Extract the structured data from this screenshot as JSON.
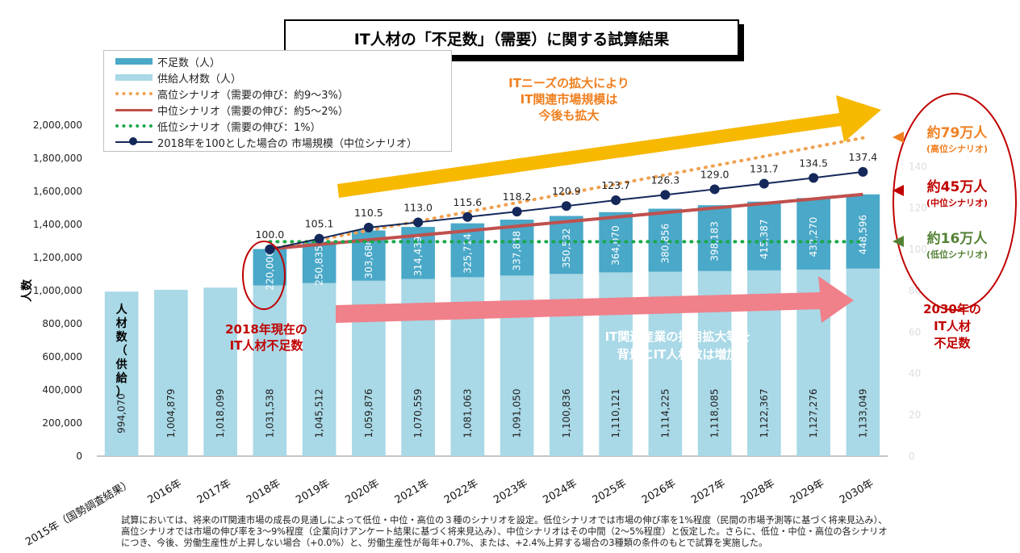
{
  "title": "IT人材の「不足数」（需要）に関する試算結果",
  "legend": [
    {
      "label": "不足数（人）",
      "kind": "bar",
      "color": "#4aa8c8"
    },
    {
      "label": "供給人材数（人）",
      "kind": "bar",
      "color": "#a9d8e6"
    },
    {
      "label": "高位シナリオ（需要の伸び：約9〜3%）",
      "kind": "dots",
      "color": "#f0a050"
    },
    {
      "label": "中位シナリオ（需要の伸び：約5〜2%）",
      "kind": "line",
      "color": "#c0504d"
    },
    {
      "label": "低位シナリオ（需要の伸び：1%）",
      "kind": "dots",
      "color": "#1aa84a"
    },
    {
      "label": "2018年を100とした場合の 市場規模（中位シナリオ）",
      "kind": "marker",
      "color": "#14285a"
    }
  ],
  "chart_data": {
    "type": "bar",
    "stacked": true,
    "ylabel": "人数",
    "ylim": [
      0,
      2000000
    ],
    "yticks": [
      "0",
      "200,000",
      "400,000",
      "600,000",
      "800,000",
      "1,000,000",
      "1,200,000",
      "1,400,000",
      "1,600,000",
      "1,800,000",
      "2,000,000"
    ],
    "categories": [
      "2015年（国勢調査結果）",
      "2016年",
      "2017年",
      "2018年",
      "2019年",
      "2020年",
      "2021年",
      "2022年",
      "2023年",
      "2024年",
      "2025年",
      "2026年",
      "2027年",
      "2028年",
      "2029年",
      "2030年"
    ],
    "supply": [
      994070,
      1004879,
      1018099,
      1031538,
      1045512,
      1059876,
      1070559,
      1081063,
      1091050,
      1100836,
      1110121,
      1114225,
      1118085,
      1122367,
      1127276,
      1133049
    ],
    "supply_labels": [
      "994,070",
      "1,004,879",
      "1,018,099",
      "1,031,538",
      "1,045,512",
      "1,059,876",
      "1,070,559",
      "1,081,063",
      "1,091,050",
      "1,100,836",
      "1,110,121",
      "1,114,225",
      "1,118,085",
      "1,122,367",
      "1,127,276",
      "1,133,049"
    ],
    "shortage": [
      null,
      null,
      null,
      220000,
      250835,
      303680,
      314439,
      325714,
      337848,
      350532,
      364070,
      380856,
      398183,
      415387,
      432270,
      448596
    ],
    "shortage_labels": [
      "",
      "",
      "",
      "220,000",
      "250,835",
      "303,680",
      "314,439",
      "325,714",
      "337,848",
      "350,532",
      "364,070",
      "380,856",
      "398,183",
      "415,387",
      "432,270",
      "448,596"
    ],
    "market_index": [
      null,
      null,
      null,
      100.0,
      105.1,
      110.5,
      113.0,
      115.6,
      118.2,
      120.9,
      123.7,
      126.3,
      129.0,
      131.7,
      134.5,
      137.4
    ],
    "market_index_labels": [
      "",
      "",
      "",
      "100.0",
      "105.1",
      "110.5",
      "113.0",
      "115.6",
      "118.2",
      "120.9",
      "123.7",
      "126.3",
      "129.0",
      "131.7",
      "134.5",
      "137.4"
    ],
    "right_axis": {
      "ylim": [
        0,
        160
      ],
      "ticks": [
        "0",
        "20",
        "40",
        "60",
        "80",
        "100",
        "120",
        "140"
      ]
    },
    "scenarios": [
      {
        "name": "高位シナリオ",
        "start": 1251538,
        "end": 1923000,
        "color": "#f0a050",
        "style": "dotted"
      },
      {
        "name": "中位シナリオ",
        "start": 1251538,
        "end": 1581645,
        "color": "#c0504d",
        "style": "solid"
      },
      {
        "name": "低位シナリオ",
        "start": 1296000,
        "end": 1296000,
        "color": "#1aa84a",
        "style": "dotted"
      }
    ],
    "colors": {
      "shortage": "#4aa8c8",
      "supply": "#a9d8e6",
      "market": "#14285a"
    }
  },
  "annotations": {
    "supply_label": "人材数（供給）",
    "arrow_up": "ITニーズの拡大により\nIT関連市場規模は\n今後も拡大",
    "arrow_right": "IT関連産業の採用拡大等を\n背景にIT人材数は増加",
    "current_shortage": "2018年現在の\nIT人材不足数",
    "shortage_2030": "2030年の\nIT人材\n不足数",
    "high_value": "約79万人",
    "high_name": "(高位シナリオ)",
    "mid_value": "約45万人",
    "mid_name": "(中位シナリオ)",
    "low_value": "約16万人",
    "low_name": "(低位シナリオ)"
  },
  "note": "試算においては、将来のIT関連市場の成長の見通しによって低位・中位・高位の３種のシナリオを設定。低位シナリオでは市場の伸び率を1%程度（民間の市場予測等に基づく将来見込み）、高位シナリオでは市場の伸び率を3〜9%程度（企業向けアンケート結果に基づく将来見込み）、中位シナリオはその中間（2〜5%程度）と仮定した。さらに、低位・中位・高位の各シナリオにつき、今後、労働生産性が上昇しない場合（+0.0%）と、労働生産性が毎年+0.7%、または、+2.4%上昇する場合の3種類の条件のもとで試算を実施した。"
}
